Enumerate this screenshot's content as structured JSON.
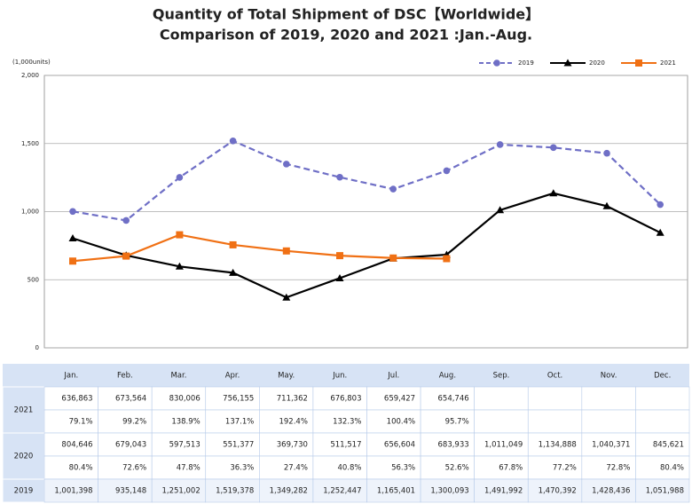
{
  "chart_data": {
    "type": "line",
    "title": "Quantity of Total Shipment of DSC【Worldwide】",
    "subtitle": "Comparison of 2019, 2020 and 2021 :Jan.-Aug.",
    "y_label": "(1,000units)",
    "categories": [
      "Jan.",
      "Feb.",
      "Mar.",
      "Apr.",
      "May.",
      "Jun.",
      "Jul.",
      "Aug.",
      "Sep.",
      "Oct.",
      "Nov.",
      "Dec."
    ],
    "ylim": [
      0,
      2000
    ],
    "yticks": [
      0,
      500,
      {
        "value": 1000,
        "label": "1,000"
      },
      {
        "value": 1500,
        "label": "1,500"
      },
      {
        "value": 2000,
        "label": "2,000"
      }
    ],
    "grid": true,
    "legend": "top-right",
    "series": [
      {
        "name": "2019",
        "color": "#6f6fc6",
        "marker": "circle",
        "dashed": true,
        "values": [
          1001.398,
          935.148,
          1251.002,
          1519.378,
          1349.282,
          1252.447,
          1165.401,
          1300.093,
          1491.992,
          1470.392,
          1428.436,
          1051.988
        ],
        "value_labels": [
          "1,001,398",
          "935,148",
          "1,251,002",
          "1,519,378",
          "1,349,282",
          "1,252,447",
          "1,165,401",
          "1,300,093",
          "1,491,992",
          "1,470,392",
          "1,428,436",
          "1,051,988"
        ]
      },
      {
        "name": "2020",
        "color": "#000000",
        "marker": "triangle",
        "dashed": false,
        "values": [
          804.646,
          679.043,
          597.513,
          551.377,
          369.73,
          511.517,
          656.604,
          683.933,
          1011.049,
          1134.888,
          1040.371,
          845.621
        ],
        "value_labels": [
          "804,646",
          "679,043",
          "597,513",
          "551,377",
          "369,730",
          "511,517",
          "656,604",
          "683,933",
          "1,011,049",
          "1,134,888",
          "1,040,371",
          "845,621"
        ],
        "yoy": [
          "80.4%",
          "72.6%",
          "47.8%",
          "36.3%",
          "27.4%",
          "40.8%",
          "56.3%",
          "52.6%",
          "67.8%",
          "77.2%",
          "72.8%",
          "80.4%"
        ]
      },
      {
        "name": "2021",
        "color": "#f07014",
        "marker": "square",
        "dashed": false,
        "values": [
          636.863,
          673.564,
          830.006,
          756.155,
          711.362,
          676.803,
          659.427,
          654.746,
          null,
          null,
          null,
          null
        ],
        "value_labels": [
          "636,863",
          "673,564",
          "830,006",
          "756,155",
          "711,362",
          "676,803",
          "659,427",
          "654,746",
          null,
          null,
          null,
          null
        ],
        "yoy": [
          "79.1%",
          "99.2%",
          "138.9%",
          "137.1%",
          "192.4%",
          "132.3%",
          "100.4%",
          "95.7%",
          null,
          null,
          null,
          null
        ]
      }
    ]
  }
}
